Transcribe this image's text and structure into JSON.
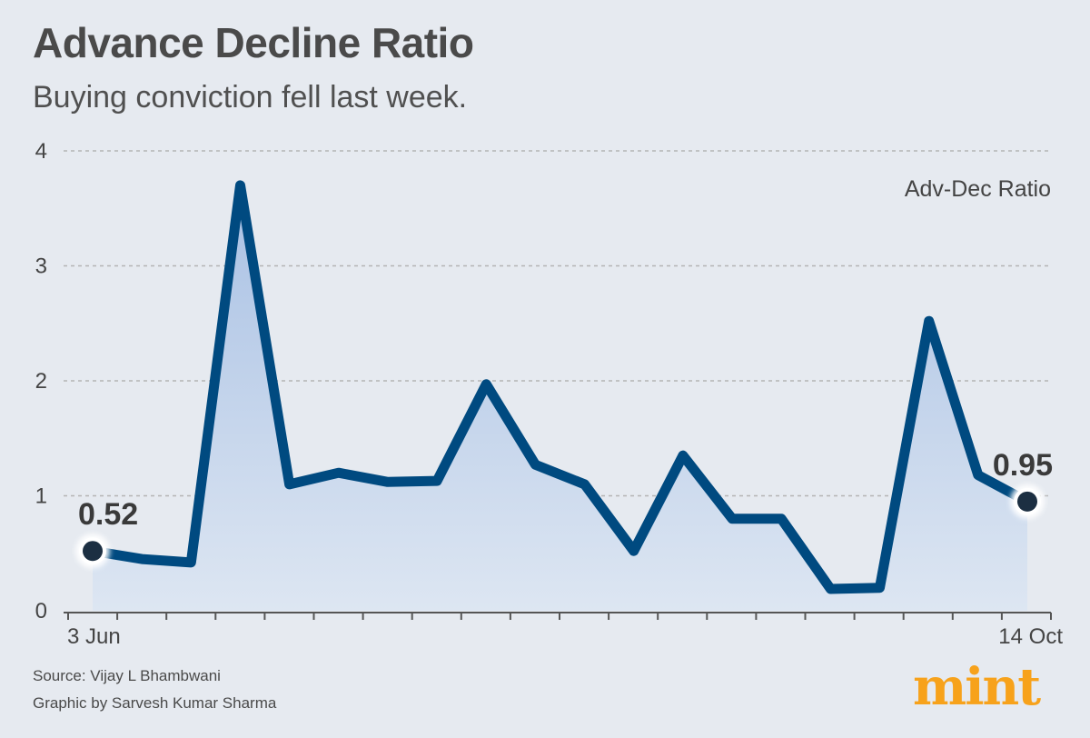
{
  "header": {
    "title": "Advance Decline Ratio",
    "subtitle": "Buying conviction fell last week."
  },
  "footer": {
    "source": "Source: Vijay L Bhambwani",
    "credit": "Graphic by Sarvesh Kumar Sharma",
    "brand": "mint"
  },
  "colors": {
    "line": "#004a80",
    "area_top": "#a9c1e4",
    "area_bottom": "#dde6f2",
    "marker": "#1c2f42",
    "grid": "#b4b4b4",
    "brand": "#f7a21b"
  },
  "chart_data": {
    "type": "area",
    "title": "Advance Decline Ratio",
    "subtitle": "Buying conviction fell last week.",
    "xlabel": "",
    "ylabel": "",
    "x_tick_labels": [
      "3 Jun",
      "14 Oct"
    ],
    "y_ticks": [
      0,
      1,
      2,
      3,
      4
    ],
    "ylim": [
      0,
      4
    ],
    "grid": true,
    "series": [
      {
        "name": "Adv-Dec Ratio",
        "values": [
          0.52,
          0.45,
          0.42,
          3.7,
          1.1,
          1.2,
          1.12,
          1.13,
          1.97,
          1.27,
          1.1,
          0.52,
          1.35,
          0.8,
          0.8,
          0.19,
          0.2,
          2.52,
          1.18,
          0.95
        ]
      }
    ],
    "annotations": [
      {
        "point_index": 0,
        "label": "0.52"
      },
      {
        "point_index": 19,
        "label": "0.95"
      }
    ]
  }
}
